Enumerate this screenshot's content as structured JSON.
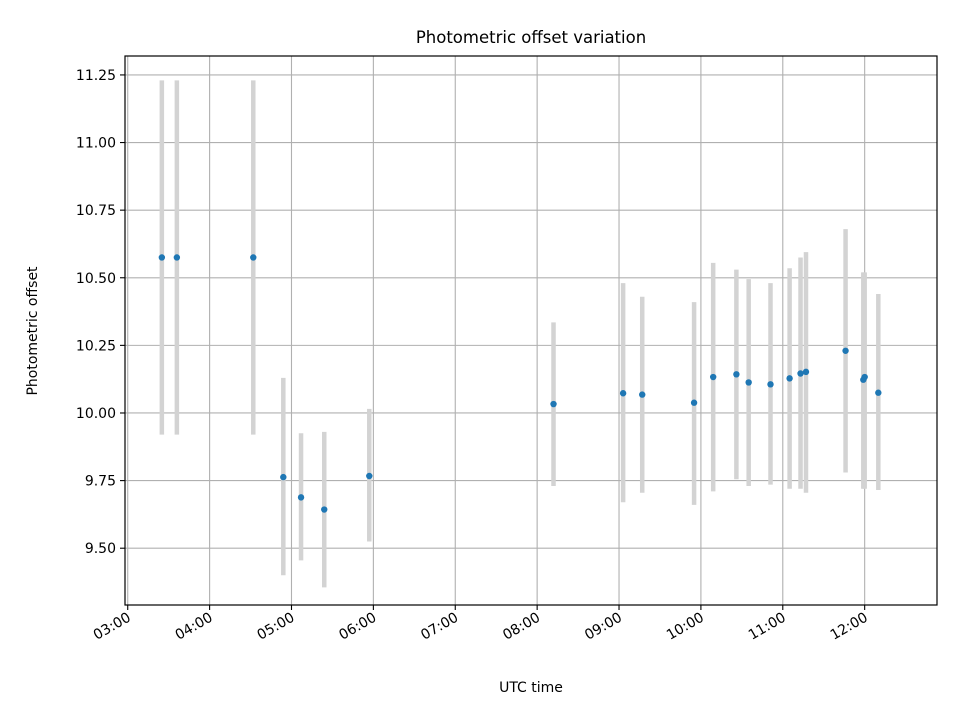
{
  "chart_data": {
    "type": "scatter",
    "title": "Photometric offset variation",
    "xlabel": "UTC time",
    "ylabel": "Photometric offset",
    "xlim": [
      "02:58",
      "12:53"
    ],
    "ylim": [
      9.29,
      11.32
    ],
    "xticks": [
      "03:00",
      "04:00",
      "05:00",
      "06:00",
      "07:00",
      "08:00",
      "09:00",
      "10:00",
      "11:00",
      "12:00"
    ],
    "yticks": [
      9.5,
      9.75,
      10.0,
      10.25,
      10.5,
      10.75,
      11.0,
      11.25
    ],
    "ytick_labels": [
      "9.50",
      "9.75",
      "10.00",
      "10.25",
      "10.50",
      "10.75",
      "11.00",
      "11.25"
    ],
    "grid": true,
    "marker_color": "#1f77b4",
    "errorbar_color": "#d3d3d3",
    "points": [
      {
        "x": "03:25",
        "y": 10.575,
        "ylow": 9.92,
        "yhigh": 11.23
      },
      {
        "x": "03:36",
        "y": 10.575,
        "ylow": 9.92,
        "yhigh": 11.23
      },
      {
        "x": "04:32",
        "y": 10.575,
        "ylow": 9.92,
        "yhigh": 11.23
      },
      {
        "x": "04:54",
        "y": 9.763,
        "ylow": 9.4,
        "yhigh": 10.13
      },
      {
        "x": "05:07",
        "y": 9.688,
        "ylow": 9.455,
        "yhigh": 9.925
      },
      {
        "x": "05:24",
        "y": 9.643,
        "ylow": 9.355,
        "yhigh": 9.93
      },
      {
        "x": "05:57",
        "y": 9.767,
        "ylow": 9.525,
        "yhigh": 10.015
      },
      {
        "x": "08:12",
        "y": 10.033,
        "ylow": 9.73,
        "yhigh": 10.335
      },
      {
        "x": "09:03",
        "y": 10.073,
        "ylow": 9.67,
        "yhigh": 10.48
      },
      {
        "x": "09:17",
        "y": 10.068,
        "ylow": 9.705,
        "yhigh": 10.43
      },
      {
        "x": "09:55",
        "y": 10.038,
        "ylow": 9.66,
        "yhigh": 10.41
      },
      {
        "x": "10:09",
        "y": 10.133,
        "ylow": 9.71,
        "yhigh": 10.555
      },
      {
        "x": "10:26",
        "y": 10.143,
        "ylow": 9.755,
        "yhigh": 10.53
      },
      {
        "x": "10:35",
        "y": 10.113,
        "ylow": 9.73,
        "yhigh": 10.495
      },
      {
        "x": "10:51",
        "y": 10.106,
        "ylow": 9.735,
        "yhigh": 10.48
      },
      {
        "x": "11:05",
        "y": 10.128,
        "ylow": 9.72,
        "yhigh": 10.535
      },
      {
        "x": "11:13",
        "y": 10.146,
        "ylow": 9.72,
        "yhigh": 10.575
      },
      {
        "x": "11:17",
        "y": 10.152,
        "ylow": 9.705,
        "yhigh": 10.595
      },
      {
        "x": "11:46",
        "y": 10.23,
        "ylow": 9.78,
        "yhigh": 10.68
      },
      {
        "x": "11:59",
        "y": 10.123,
        "ylow": 9.72,
        "yhigh": 10.52
      },
      {
        "x": "12:00",
        "y": 10.133,
        "ylow": 9.72,
        "yhigh": 10.52
      },
      {
        "x": "12:10",
        "y": 10.075,
        "ylow": 9.715,
        "yhigh": 10.44
      }
    ]
  }
}
